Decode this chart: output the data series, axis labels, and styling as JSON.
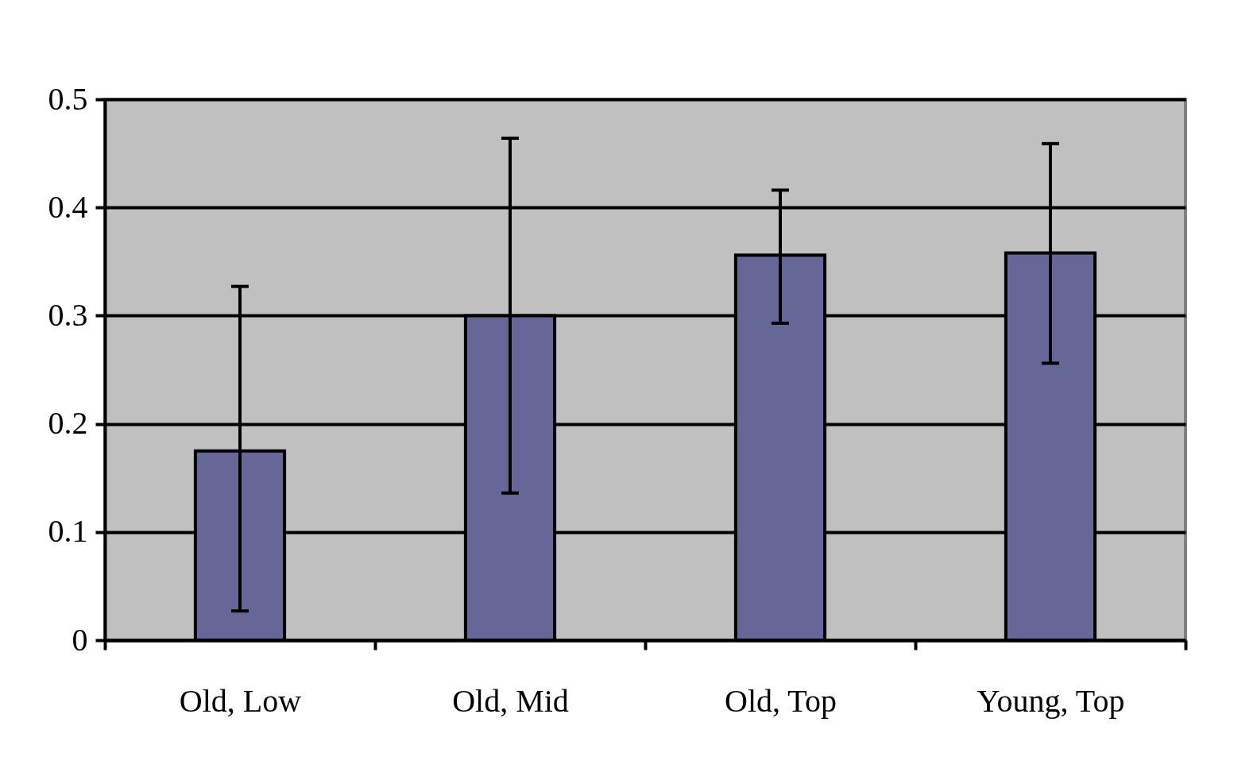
{
  "chart_data": {
    "type": "bar",
    "categories": [
      "Old, Low",
      "Old, Mid",
      "Old, Top",
      "Young, Top"
    ],
    "values": [
      0.175,
      0.3,
      0.356,
      0.358
    ],
    "color": "#666699",
    "errors": [
      [
        0.027,
        0.327
      ],
      [
        0.136,
        0.464
      ],
      [
        0.293,
        0.416
      ],
      [
        0.256,
        0.459
      ]
    ],
    "ylim": [
      0,
      0.5
    ],
    "yticks": [
      0,
      0.1,
      0.2,
      0.3,
      0.4,
      0.5
    ],
    "grid": "y"
  }
}
